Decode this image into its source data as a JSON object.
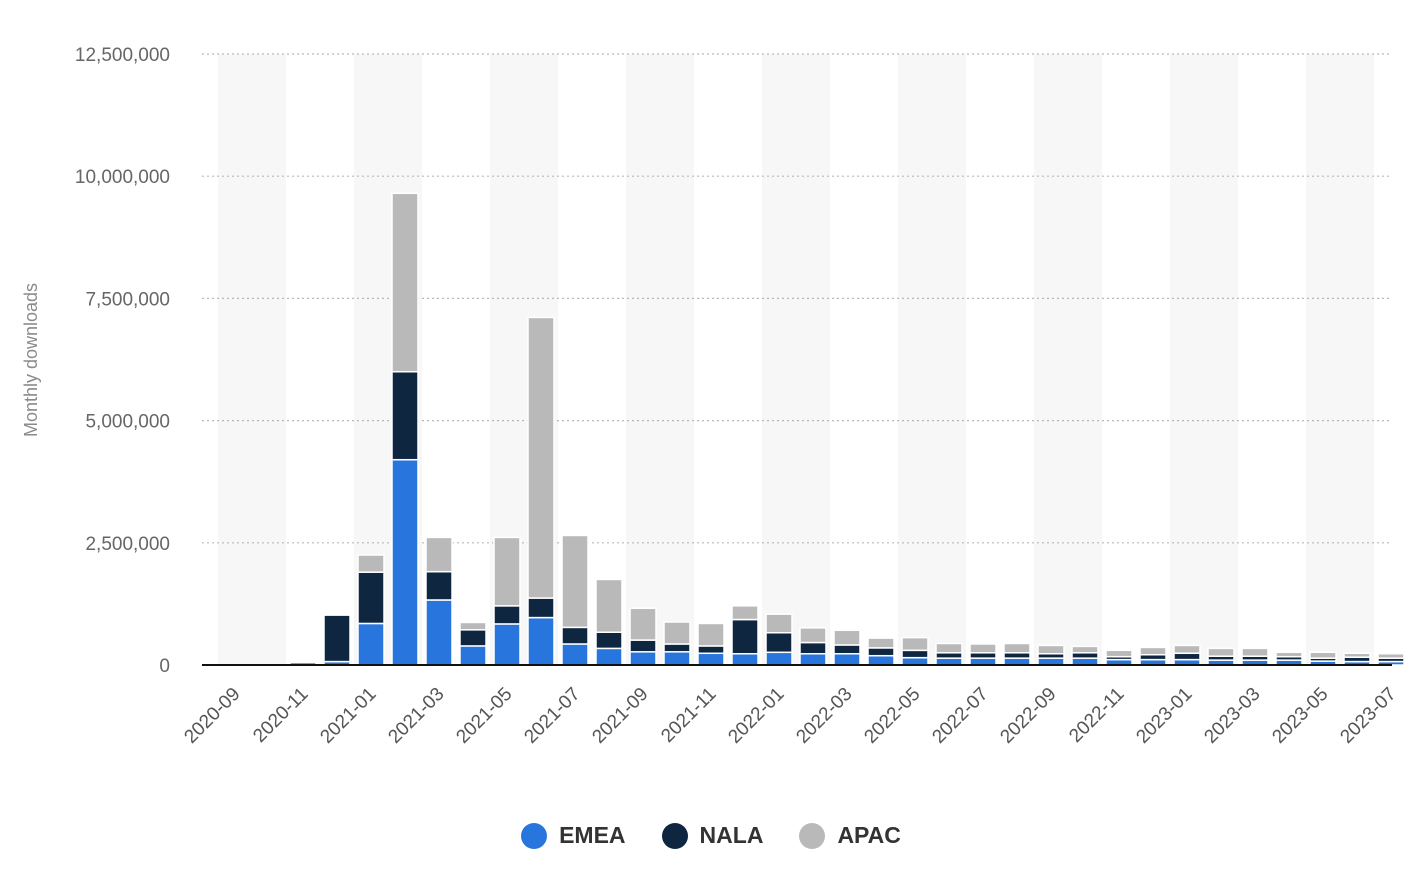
{
  "chart_data": {
    "type": "bar",
    "stacked": true,
    "ylabel": "Monthly downloads",
    "ylim": [
      0,
      12500000
    ],
    "yticks": [
      0,
      2500000,
      5000000,
      7500000,
      10000000,
      12500000
    ],
    "ytick_labels": [
      "0",
      "2,500,000",
      "5,000,000",
      "7,500,000",
      "10,000,000",
      "12,500,000"
    ],
    "categories": [
      "2020-09",
      "2020-10",
      "2020-11",
      "2020-12",
      "2021-01",
      "2021-02",
      "2021-03",
      "2021-04",
      "2021-05",
      "2021-06",
      "2021-07",
      "2021-08",
      "2021-09",
      "2021-10",
      "2021-11",
      "2021-12",
      "2022-01",
      "2022-02",
      "2022-03",
      "2022-04",
      "2022-05",
      "2022-06",
      "2022-07",
      "2022-08",
      "2022-09",
      "2022-10",
      "2022-11",
      "2022-12",
      "2023-01",
      "2023-02",
      "2023-03",
      "2023-04",
      "2023-05",
      "2023-06",
      "2023-07"
    ],
    "xtick_labels": [
      "2020-09",
      "2020-11",
      "2021-01",
      "2021-03",
      "2021-05",
      "2021-07",
      "2021-09",
      "2021-11",
      "2022-01",
      "2022-03",
      "2022-05",
      "2022-07",
      "2022-09",
      "2022-11",
      "2023-01",
      "2023-03",
      "2023-05",
      "2023-07"
    ],
    "legend_position": "bottom-center",
    "series": [
      {
        "name": "EMEA",
        "color": "#2876dd",
        "values": [
          0,
          0,
          10000,
          70000,
          850000,
          4200000,
          1330000,
          390000,
          840000,
          970000,
          430000,
          340000,
          270000,
          270000,
          240000,
          230000,
          260000,
          230000,
          230000,
          190000,
          150000,
          140000,
          140000,
          140000,
          140000,
          140000,
          110000,
          110000,
          110000,
          100000,
          100000,
          100000,
          80000,
          70000,
          70000
        ]
      },
      {
        "name": "NALA",
        "color": "#0f2641",
        "values": [
          0,
          0,
          40000,
          950000,
          1050000,
          1800000,
          580000,
          330000,
          370000,
          400000,
          340000,
          330000,
          240000,
          160000,
          150000,
          700000,
          400000,
          230000,
          180000,
          160000,
          150000,
          110000,
          110000,
          110000,
          90000,
          110000,
          60000,
          100000,
          130000,
          80000,
          80000,
          70000,
          60000,
          90000,
          70000
        ]
      },
      {
        "name": "APAC",
        "color": "#b9b9b9",
        "values": [
          0,
          0,
          0,
          0,
          350000,
          3650000,
          700000,
          150000,
          1400000,
          5740000,
          1880000,
          1080000,
          650000,
          450000,
          460000,
          280000,
          380000,
          300000,
          300000,
          200000,
          260000,
          190000,
          180000,
          190000,
          170000,
          130000,
          130000,
          150000,
          160000,
          160000,
          160000,
          90000,
          120000,
          80000,
          90000
        ]
      }
    ]
  }
}
